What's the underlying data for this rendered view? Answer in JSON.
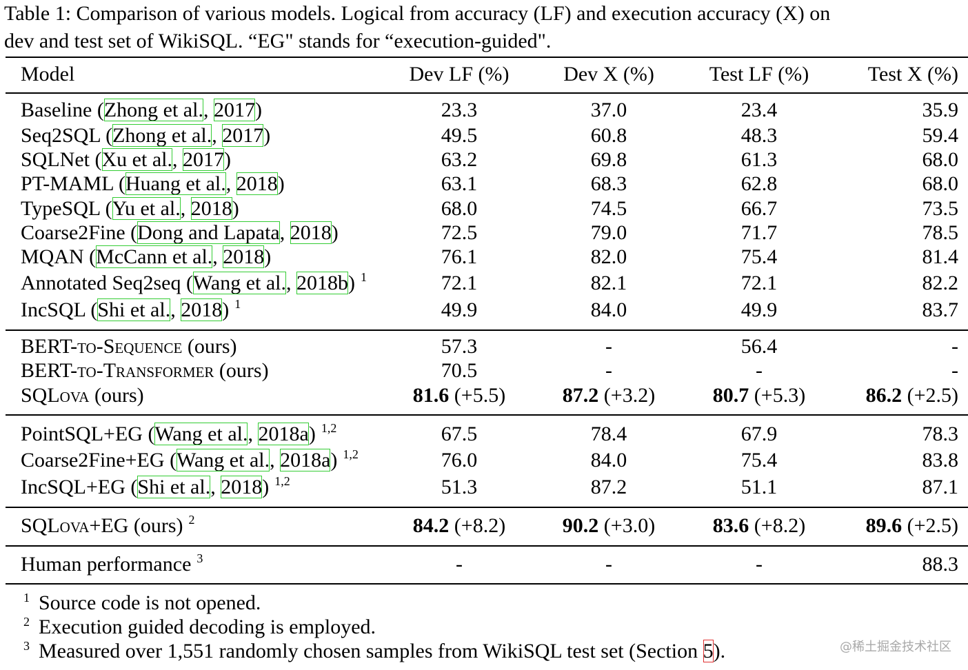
{
  "caption": [
    "Table 1: Comparison of various models. Logical from accuracy (LF) and execution accuracy (X) on",
    "dev and test set of WikiSQL. “EG\" stands for “execution-guided\"."
  ],
  "cite_box_color": "#33cc33",
  "ref_box_color": "#e03030",
  "table": {
    "header": [
      "Model",
      "Dev LF (%)",
      "Dev X (%)",
      "Test LF (%)",
      "Test X (%)"
    ],
    "groups": [
      [
        {
          "name": "Baseline",
          "smallcaps": false,
          "cite": [
            " (",
            "Zhong et al.",
            ", ",
            "2017",
            ")"
          ],
          "cells": [
            "23.3",
            "37.0",
            "23.4",
            "35.9"
          ]
        },
        {
          "name": "Seq2SQL",
          "smallcaps": false,
          "cite": [
            " (",
            "Zhong et al.",
            ", ",
            "2017",
            ")"
          ],
          "cells": [
            "49.5",
            "60.8",
            "48.3",
            "59.4"
          ]
        },
        {
          "name": "SQLNet",
          "smallcaps": false,
          "cite": [
            " (",
            "Xu et al.",
            ", ",
            "2017",
            ")"
          ],
          "cells": [
            "63.2",
            "69.8",
            "61.3",
            "68.0"
          ]
        },
        {
          "name": "PT-MAML",
          "smallcaps": false,
          "cite": [
            " (",
            "Huang et al.",
            ", ",
            "2018",
            ")"
          ],
          "cells": [
            "63.1",
            "68.3",
            "62.8",
            "68.0"
          ]
        },
        {
          "name": "TypeSQL",
          "smallcaps": false,
          "cite": [
            " (",
            "Yu et al.",
            ", ",
            "2018",
            ")"
          ],
          "cells": [
            "68.0",
            "74.5",
            "66.7",
            "73.5"
          ]
        },
        {
          "name": "Coarse2Fine",
          "smallcaps": false,
          "cite": [
            " (",
            "Dong and Lapata",
            ", ",
            "2018",
            ")"
          ],
          "cells": [
            "72.5",
            "79.0",
            "71.7",
            "78.5"
          ]
        },
        {
          "name": "MQAN",
          "smallcaps": false,
          "cite": [
            " (",
            "McCann et al.",
            ", ",
            "2018",
            ")"
          ],
          "cells": [
            "76.1",
            "82.0",
            "75.4",
            "81.4"
          ]
        },
        {
          "name": "Annotated Seq2seq",
          "smallcaps": false,
          "cite": [
            " (",
            "Wang et al.",
            ", ",
            "2018b",
            ")"
          ],
          "note": "1",
          "cells": [
            "72.1",
            "82.1",
            "72.1",
            "82.2"
          ]
        },
        {
          "name": "IncSQL",
          "smallcaps": false,
          "cite": [
            " (",
            "Shi et al.",
            ", ",
            "2018",
            ")"
          ],
          "note": "1",
          "cells": [
            "49.9",
            "84.0",
            "49.9",
            "83.7"
          ]
        }
      ],
      [
        {
          "name": "BERT-to-Sequence",
          "smallcaps": true,
          "cite": [
            " (ours)"
          ],
          "cells": [
            "57.3",
            "-",
            "56.4",
            "-"
          ]
        },
        {
          "name": "BERT-to-Transformer",
          "smallcaps": true,
          "cite": [
            " (ours)"
          ],
          "cells": [
            "70.5",
            "-",
            "-",
            "-"
          ]
        },
        {
          "name": "SQLova",
          "smallcaps": true,
          "cite": [
            " (ours)"
          ],
          "cells": [
            {
              "main": "81.6",
              "extra": " (+5.5)"
            },
            {
              "main": "87.2",
              "extra": " (+3.2)"
            },
            {
              "main": "80.7",
              "extra": " (+5.3)"
            },
            {
              "main": "86.2",
              "extra": " (+2.5)"
            }
          ]
        }
      ],
      [
        {
          "name": "PointSQL+EG",
          "smallcaps": false,
          "cite": [
            " (",
            "Wang et al.",
            ", ",
            "2018a",
            ")"
          ],
          "note": "1,2",
          "cells": [
            "67.5",
            "78.4",
            "67.9",
            "78.3"
          ]
        },
        {
          "name": "Coarse2Fine+EG",
          "smallcaps": false,
          "cite": [
            " (",
            "Wang et al.",
            ", ",
            "2018a",
            ")"
          ],
          "note": "1,2",
          "cells": [
            "76.0",
            "84.0",
            "75.4",
            "83.8"
          ]
        },
        {
          "name": "IncSQL+EG",
          "smallcaps": false,
          "cite": [
            " (",
            "Shi et al.",
            ", ",
            "2018",
            ")"
          ],
          "note": "1,2",
          "cells": [
            "51.3",
            "87.2",
            "51.1",
            "87.1"
          ]
        }
      ],
      [
        {
          "name": "SQLova+EG",
          "smallcaps": true,
          "cite": [
            " (ours)"
          ],
          "note": "2",
          "cells": [
            {
              "main": "84.2",
              "extra": " (+8.2)"
            },
            {
              "main": "90.2",
              "extra": " (+3.0)"
            },
            {
              "main": "83.6",
              "extra": " (+8.2)"
            },
            {
              "main": "89.6",
              "extra": " (+2.5)"
            }
          ]
        }
      ],
      [
        {
          "name": "Human performance",
          "smallcaps": false,
          "cite": [],
          "note": "3",
          "cells": [
            "-",
            "-",
            "-",
            "88.3"
          ]
        }
      ]
    ]
  },
  "footnotes": [
    {
      "mark": "1",
      "parts": [
        "Source code is not opened."
      ]
    },
    {
      "mark": "2",
      "parts": [
        "Execution guided decoding is employed."
      ]
    },
    {
      "mark": "3",
      "parts": [
        "Measured over 1,551 randomly chosen samples from WikiSQL test set (Section ",
        "5",
        ")."
      ]
    }
  ],
  "watermark": "@稀土掘金技术社区"
}
